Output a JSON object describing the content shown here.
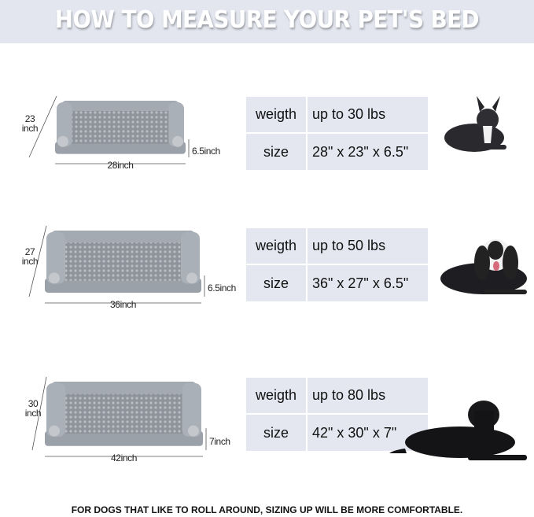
{
  "title": "HOW TO MEASURE YOUR PET'S BED",
  "labels": {
    "weight": "weigth",
    "size": "size"
  },
  "beds": [
    {
      "width": "28inch",
      "depth_num": "23",
      "depth_unit": "inch",
      "height": "6.5inch",
      "weight": "up to 30 lbs",
      "size": "28\" x 23\" x 6.5\"",
      "dog": "french-bulldog"
    },
    {
      "width": "36inch",
      "depth_num": "27",
      "depth_unit": "inch",
      "height": "6.5inch",
      "weight": "up to 50 lbs",
      "size": "36\" x 27\" x 6.5\"",
      "dog": "cocker-spaniel"
    },
    {
      "width": "42inch",
      "depth_num": "30",
      "depth_unit": "inch",
      "height": "7inch",
      "weight": "up to 80 lbs",
      "size": "42\" x 30\" x 7\"",
      "dog": "labrador"
    }
  ],
  "footer": "FOR DOGS THAT LIKE TO ROLL AROUND, SIZING UP WILL BE MORE COMFORTABLE.",
  "colors": {
    "header_band": "#e3e6ef",
    "table_cell": "#e4e7f0",
    "bed_gray": "#9aa1a8"
  }
}
